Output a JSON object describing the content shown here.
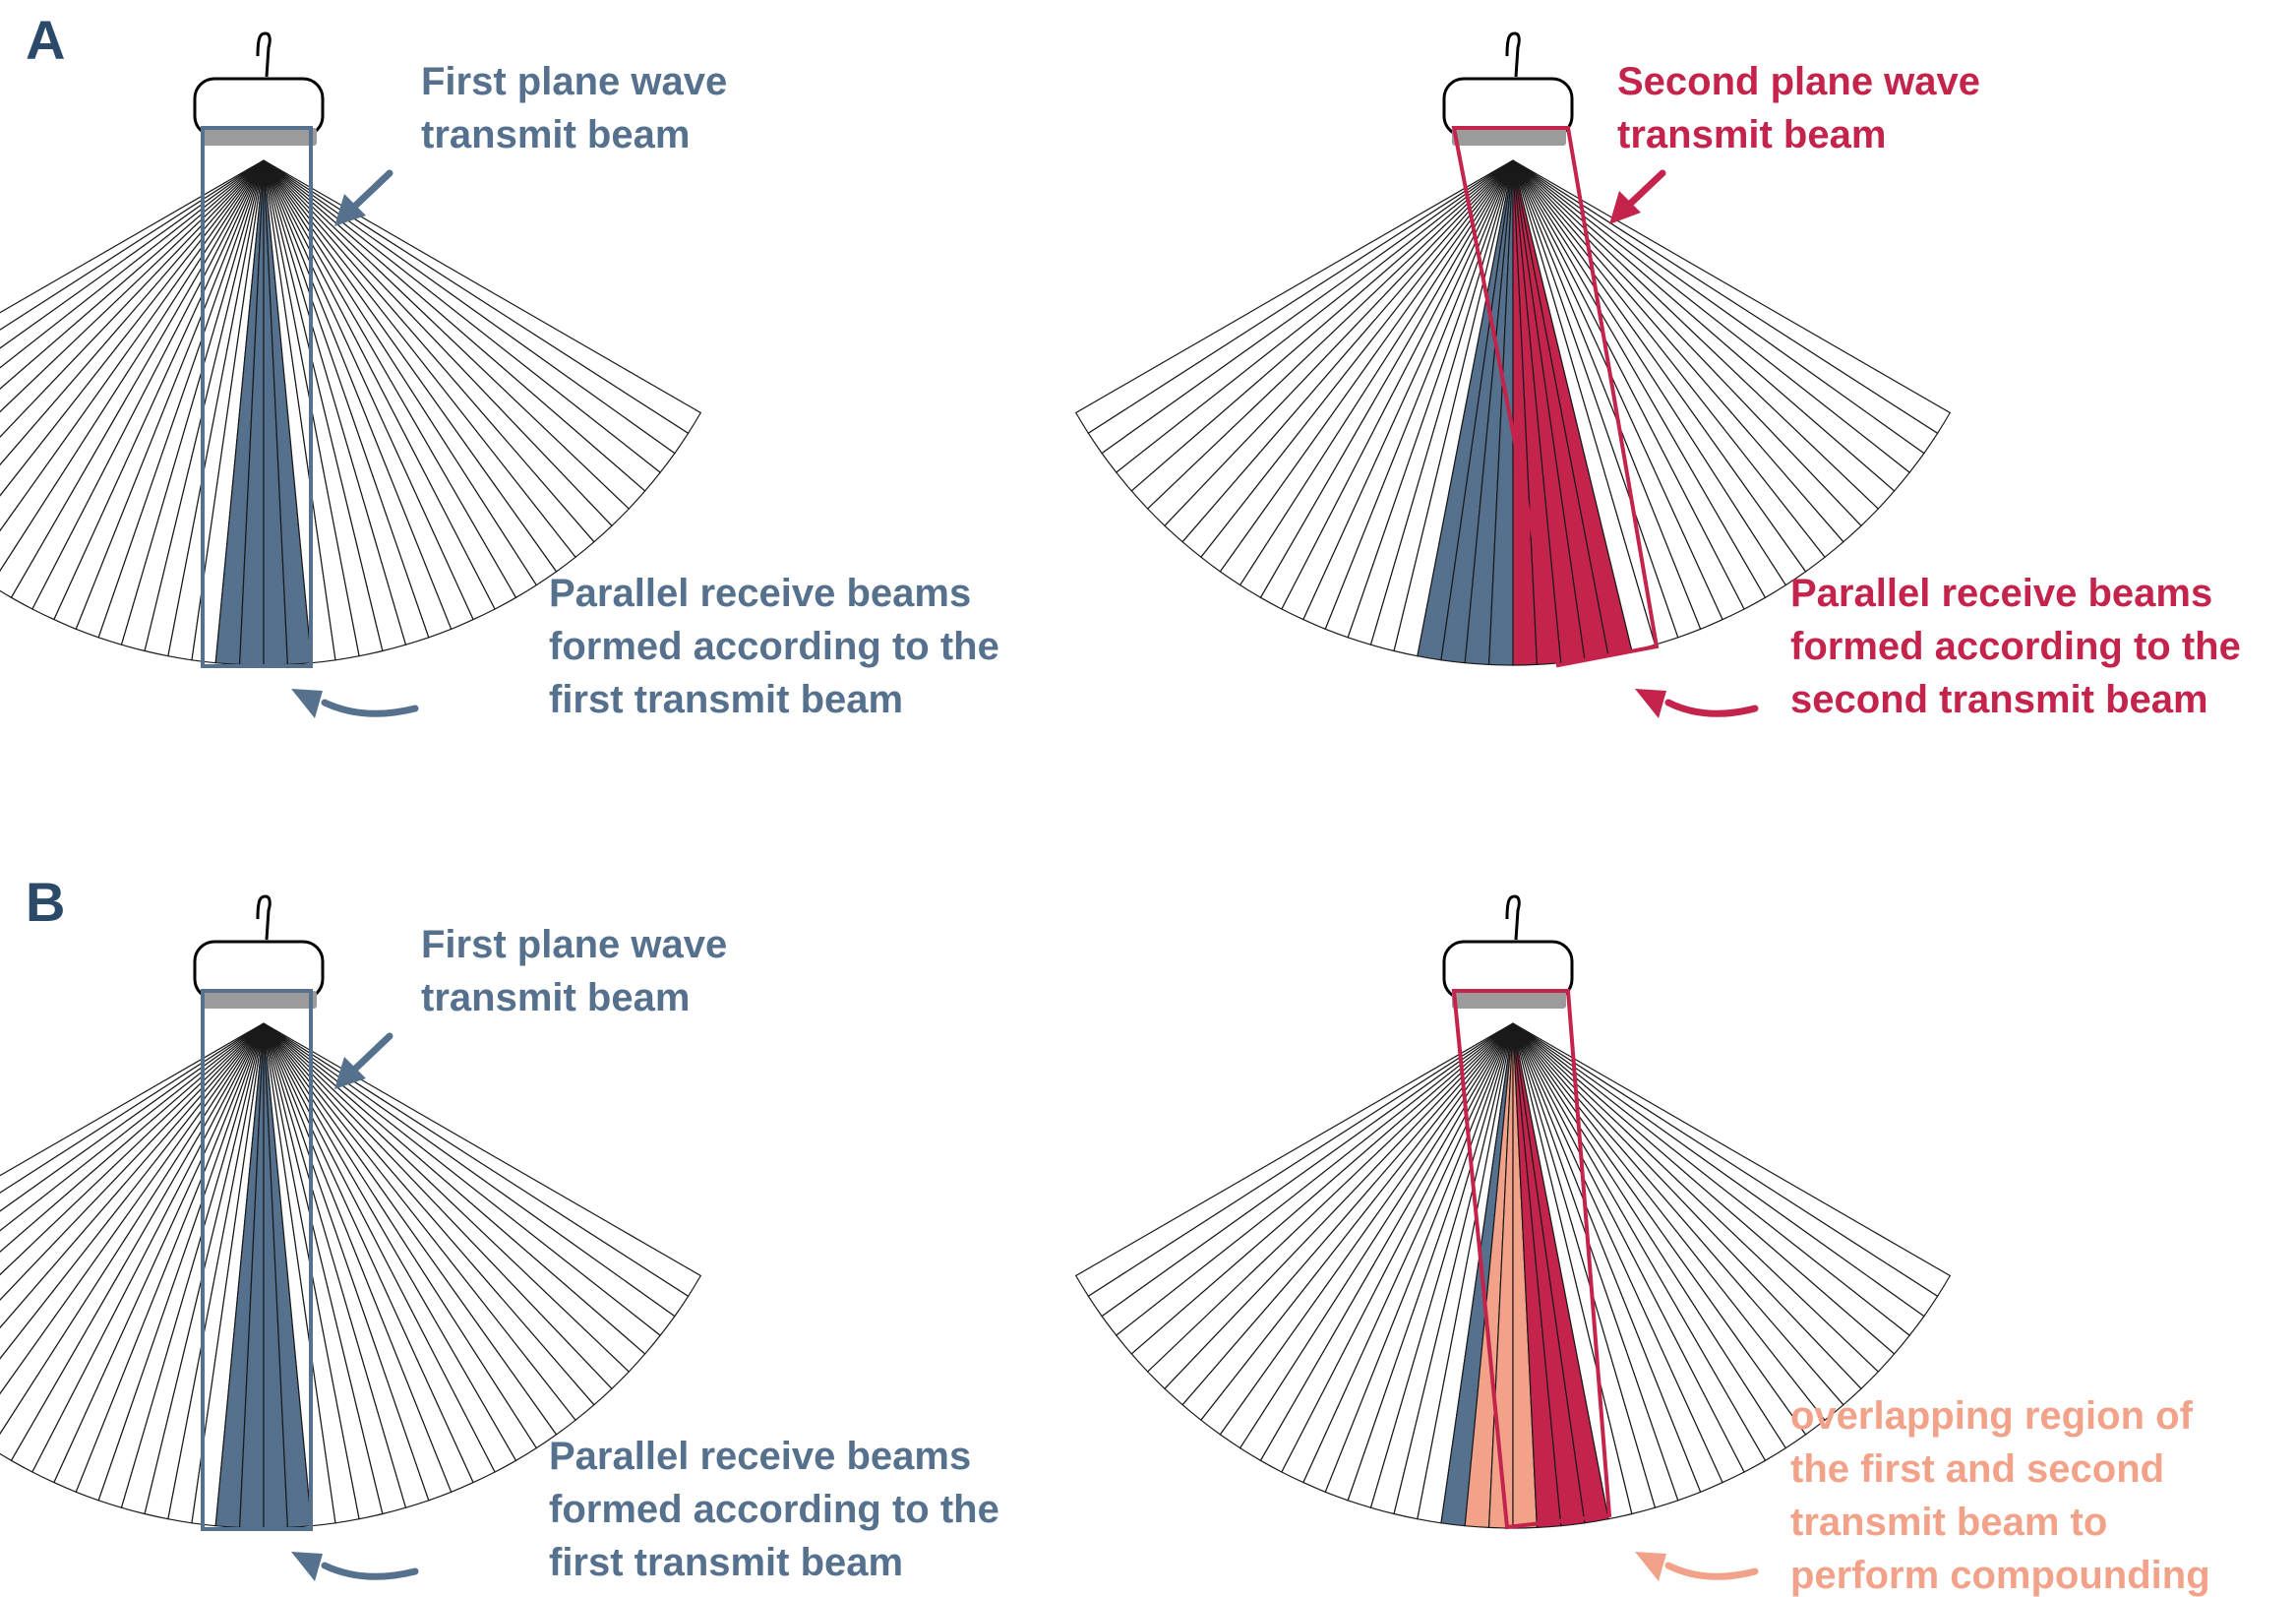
{
  "colors": {
    "first_beam": "#56718e",
    "second_beam": "#c4234c",
    "overlap": "#f3a28a",
    "panel_letter": "#2b4a6a",
    "transducer_face": "#9b9b9b",
    "scan_lines": "#1a1a1a"
  },
  "icons": {
    "probe": "ultrasound-transducer-icon",
    "arrow": "curved-arrow-icon"
  },
  "panels": [
    {
      "letter": "A",
      "diagrams": [
        {
          "id": "a-left",
          "transmit_label": [
            "First plane wave",
            "transmit beam"
          ],
          "receive_label": [
            "Parallel receive beams",
            "formed according to the",
            "first transmit beam"
          ]
        },
        {
          "id": "a-right",
          "transmit_label": [
            "Second plane wave",
            "transmit beam"
          ],
          "receive_label": [
            "Parallel receive beams",
            "formed according to the",
            "second transmit beam"
          ]
        }
      ]
    },
    {
      "letter": "B",
      "diagrams": [
        {
          "id": "b-left",
          "transmit_label": [
            "First plane wave",
            "transmit beam"
          ],
          "receive_label": [
            "Parallel receive beams",
            "formed according to the",
            "first transmit beam"
          ]
        },
        {
          "id": "b-right",
          "overlap_label": [
            "overlapping region of",
            "the first and second",
            "transmit beam to",
            "perform compounding"
          ]
        }
      ]
    }
  ]
}
